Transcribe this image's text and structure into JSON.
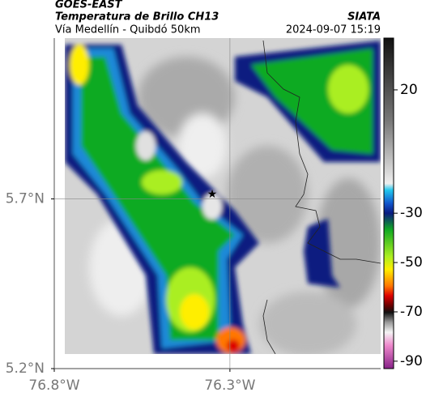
{
  "header": {
    "source": "GOES-EAST",
    "title": "Temperatura de Brillo CH13",
    "subtitle": "Vía Medellín - Quibdó 50km",
    "org": "SIATA",
    "datetime": "2024-09-07 15:19"
  },
  "map": {
    "xlim": [
      -76.8,
      -75.871
    ],
    "ylim": [
      5.2,
      6.174
    ],
    "xticks": [
      {
        "value": -76.8,
        "label": "76.8°W"
      },
      {
        "value": -76.3,
        "label": "76.3°W"
      }
    ],
    "yticks": [
      {
        "value": 5.2,
        "label": "5.2°N"
      },
      {
        "value": 5.7,
        "label": "5.7°N"
      }
    ],
    "grid": true
  },
  "colorbar": {
    "clim": [
      -93,
      41
    ],
    "ticks": [
      20,
      -30,
      -50,
      -70,
      -90
    ]
  }
}
